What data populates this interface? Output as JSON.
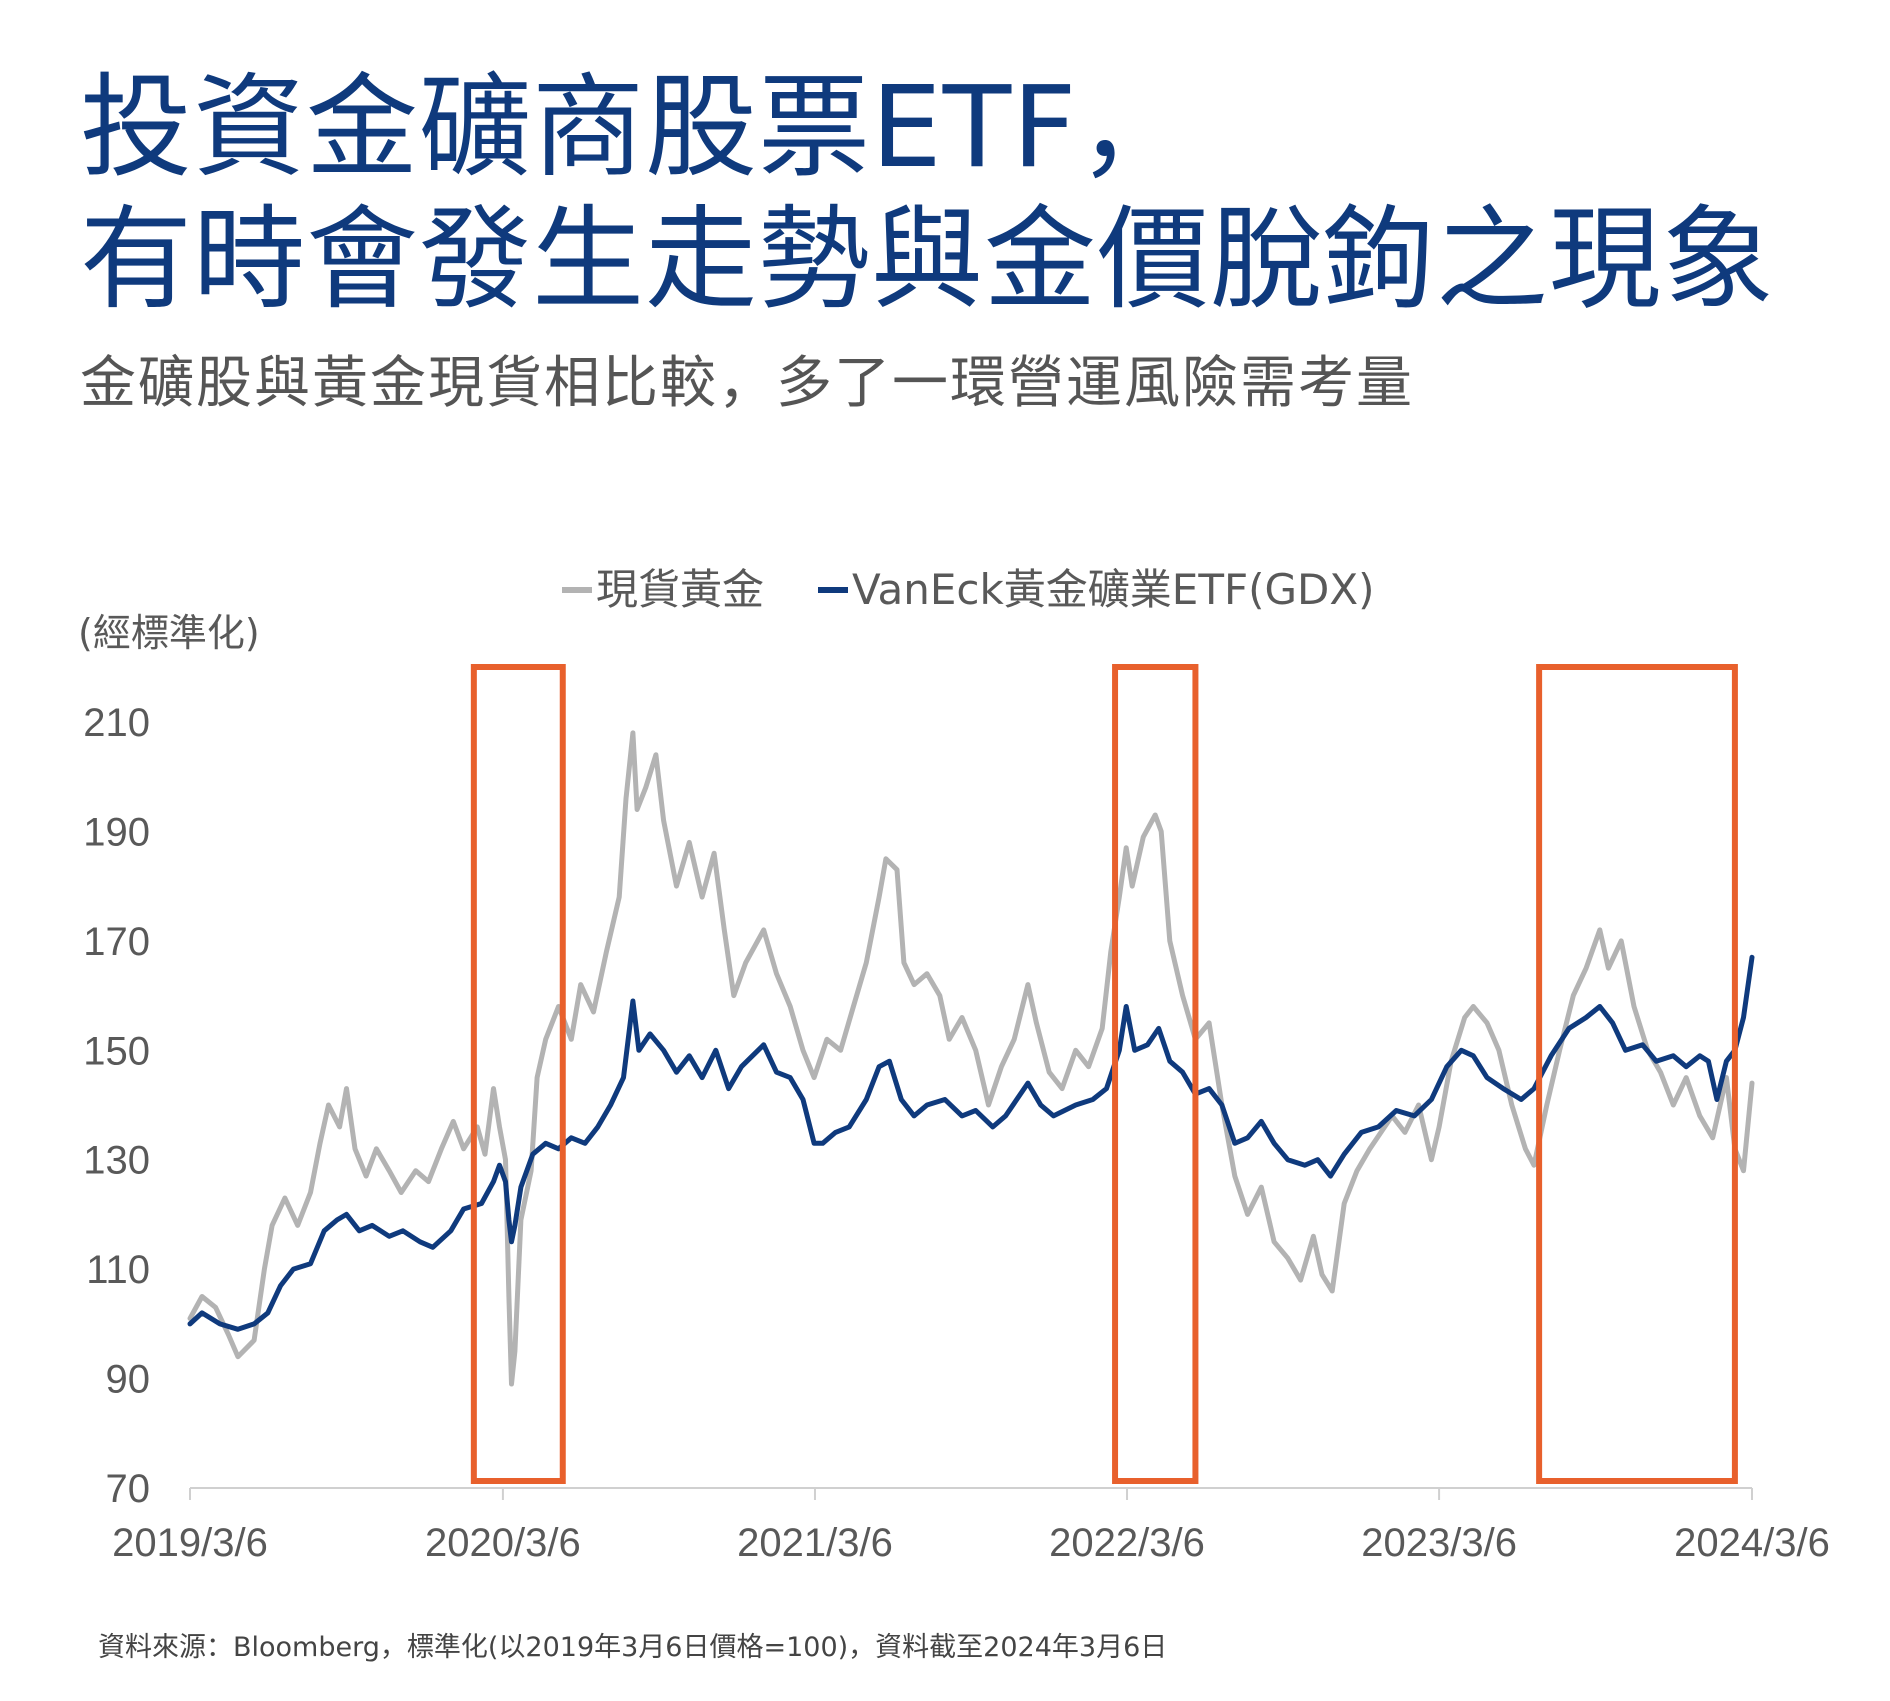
{
  "title": {
    "line1": "投資金礦商股票ETF，",
    "line2": "有時會發生走勢與金價脫鉤之現象"
  },
  "subtitle": "金礦股與黃金現貨相比較，多了一環營運風險需考量",
  "footnote": "資料來源：Bloomberg，標準化(以2019年3月6日價格=100)，資料截至2024年3月6日",
  "colors": {
    "title": "#0f3a7d",
    "gold_series": "#b3b3b3",
    "gdx_series": "#0f3a7d",
    "highlight_box": "#e8602c",
    "axis": "#d0d0d0"
  },
  "chart_data": {
    "type": "line",
    "ylabel": "(經標準化)",
    "ylim": [
      70,
      210
    ],
    "yticks": [
      "210",
      "190",
      "170",
      "150",
      "130",
      "110",
      "90",
      "70"
    ],
    "xlim": [
      "2019-03-06",
      "2024-03-06"
    ],
    "xticks": [
      "2019/3/6",
      "2020/3/6",
      "2021/3/6",
      "2022/3/6",
      "2023/3/6",
      "2024/3/6"
    ],
    "grid": false,
    "legend_position": "top-center",
    "highlight_periods": [
      {
        "start": "2020-02-01",
        "end": "2020-05-15"
      },
      {
        "start": "2022-02-20",
        "end": "2022-05-25"
      },
      {
        "start": "2023-07-01",
        "end": "2024-02-15"
      }
    ],
    "series": [
      {
        "name": "現貨黃金",
        "color": "#b3b3b3",
        "points": [
          [
            "2019-03-06",
            101
          ],
          [
            "2019-03-20",
            105
          ],
          [
            "2019-04-05",
            103
          ],
          [
            "2019-04-20",
            98
          ],
          [
            "2019-05-01",
            94
          ],
          [
            "2019-05-20",
            97
          ],
          [
            "2019-06-01",
            110
          ],
          [
            "2019-06-10",
            118
          ],
          [
            "2019-06-25",
            123
          ],
          [
            "2019-07-10",
            118
          ],
          [
            "2019-07-25",
            124
          ],
          [
            "2019-08-05",
            133
          ],
          [
            "2019-08-15",
            140
          ],
          [
            "2019-08-28",
            136
          ],
          [
            "2019-09-05",
            143
          ],
          [
            "2019-09-15",
            132
          ],
          [
            "2019-09-28",
            127
          ],
          [
            "2019-10-10",
            132
          ],
          [
            "2019-10-25",
            128
          ],
          [
            "2019-11-08",
            124
          ],
          [
            "2019-11-25",
            128
          ],
          [
            "2019-12-10",
            126
          ],
          [
            "2019-12-25",
            132
          ],
          [
            "2020-01-08",
            137
          ],
          [
            "2020-01-20",
            132
          ],
          [
            "2020-02-05",
            136
          ],
          [
            "2020-02-14",
            131
          ],
          [
            "2020-02-24",
            143
          ],
          [
            "2020-03-02",
            136
          ],
          [
            "2020-03-09",
            130
          ],
          [
            "2020-03-13",
            105
          ],
          [
            "2020-03-16",
            89
          ],
          [
            "2020-03-20",
            95
          ],
          [
            "2020-03-27",
            119
          ],
          [
            "2020-04-08",
            128
          ],
          [
            "2020-04-15",
            145
          ],
          [
            "2020-04-25",
            152
          ],
          [
            "2020-05-10",
            158
          ],
          [
            "2020-05-25",
            152
          ],
          [
            "2020-06-05",
            162
          ],
          [
            "2020-06-20",
            157
          ],
          [
            "2020-07-05",
            168
          ],
          [
            "2020-07-20",
            178
          ],
          [
            "2020-07-28",
            196
          ],
          [
            "2020-08-05",
            208
          ],
          [
            "2020-08-10",
            194
          ],
          [
            "2020-08-20",
            198
          ],
          [
            "2020-09-01",
            204
          ],
          [
            "2020-09-10",
            192
          ],
          [
            "2020-09-25",
            180
          ],
          [
            "2020-10-10",
            188
          ],
          [
            "2020-10-25",
            178
          ],
          [
            "2020-11-08",
            186
          ],
          [
            "2020-11-20",
            172
          ],
          [
            "2020-12-01",
            160
          ],
          [
            "2020-12-15",
            166
          ],
          [
            "2021-01-05",
            172
          ],
          [
            "2021-01-20",
            164
          ],
          [
            "2021-02-05",
            158
          ],
          [
            "2021-02-20",
            150
          ],
          [
            "2021-03-05",
            145
          ],
          [
            "2021-03-20",
            152
          ],
          [
            "2021-04-05",
            150
          ],
          [
            "2021-04-20",
            158
          ],
          [
            "2021-05-05",
            166
          ],
          [
            "2021-05-20",
            178
          ],
          [
            "2021-05-28",
            185
          ],
          [
            "2021-06-10",
            183
          ],
          [
            "2021-06-18",
            166
          ],
          [
            "2021-06-30",
            162
          ],
          [
            "2021-07-15",
            164
          ],
          [
            "2021-07-30",
            160
          ],
          [
            "2021-08-10",
            152
          ],
          [
            "2021-08-25",
            156
          ],
          [
            "2021-09-10",
            150
          ],
          [
            "2021-09-25",
            140
          ],
          [
            "2021-10-10",
            147
          ],
          [
            "2021-10-25",
            152
          ],
          [
            "2021-11-10",
            162
          ],
          [
            "2021-11-20",
            155
          ],
          [
            "2021-12-05",
            146
          ],
          [
            "2021-12-20",
            143
          ],
          [
            "2022-01-05",
            150
          ],
          [
            "2022-01-20",
            147
          ],
          [
            "2022-02-05",
            154
          ],
          [
            "2022-02-15",
            168
          ],
          [
            "2022-02-25",
            178
          ],
          [
            "2022-03-05",
            187
          ],
          [
            "2022-03-12",
            180
          ],
          [
            "2022-03-25",
            189
          ],
          [
            "2022-04-08",
            193
          ],
          [
            "2022-04-15",
            190
          ],
          [
            "2022-04-25",
            170
          ],
          [
            "2022-05-10",
            160
          ],
          [
            "2022-05-25",
            152
          ],
          [
            "2022-06-10",
            155
          ],
          [
            "2022-06-25",
            140
          ],
          [
            "2022-07-10",
            127
          ],
          [
            "2022-07-25",
            120
          ],
          [
            "2022-08-10",
            125
          ],
          [
            "2022-08-25",
            115
          ],
          [
            "2022-09-10",
            112
          ],
          [
            "2022-09-25",
            108
          ],
          [
            "2022-10-10",
            116
          ],
          [
            "2022-10-20",
            109
          ],
          [
            "2022-11-01",
            106
          ],
          [
            "2022-11-15",
            122
          ],
          [
            "2022-11-30",
            128
          ],
          [
            "2022-12-15",
            132
          ],
          [
            "2023-01-10",
            138
          ],
          [
            "2023-01-25",
            135
          ],
          [
            "2023-02-10",
            140
          ],
          [
            "2023-02-25",
            130
          ],
          [
            "2023-03-06",
            136
          ],
          [
            "2023-03-20",
            148
          ],
          [
            "2023-04-05",
            156
          ],
          [
            "2023-04-15",
            158
          ],
          [
            "2023-05-01",
            155
          ],
          [
            "2023-05-15",
            150
          ],
          [
            "2023-05-30",
            140
          ],
          [
            "2023-06-15",
            132
          ],
          [
            "2023-06-25",
            129
          ],
          [
            "2023-07-10",
            140
          ],
          [
            "2023-07-25",
            150
          ],
          [
            "2023-08-10",
            160
          ],
          [
            "2023-08-25",
            165
          ],
          [
            "2023-09-10",
            172
          ],
          [
            "2023-09-20",
            165
          ],
          [
            "2023-10-05",
            170
          ],
          [
            "2023-10-20",
            158
          ],
          [
            "2023-11-05",
            150
          ],
          [
            "2023-11-20",
            146
          ],
          [
            "2023-12-05",
            140
          ],
          [
            "2023-12-20",
            145
          ],
          [
            "2024-01-05",
            138
          ],
          [
            "2024-01-20",
            134
          ],
          [
            "2024-02-05",
            145
          ],
          [
            "2024-02-15",
            132
          ],
          [
            "2024-02-25",
            128
          ],
          [
            "2024-03-06",
            144
          ]
        ]
      },
      {
        "name": "VanEck黃金礦業ETF(GDX)",
        "color": "#0f3a7d",
        "points": [
          [
            "2019-03-06",
            100
          ],
          [
            "2019-03-20",
            102
          ],
          [
            "2019-04-10",
            100
          ],
          [
            "2019-05-01",
            99
          ],
          [
            "2019-05-20",
            100
          ],
          [
            "2019-06-05",
            102
          ],
          [
            "2019-06-20",
            107
          ],
          [
            "2019-07-05",
            110
          ],
          [
            "2019-07-25",
            111
          ],
          [
            "2019-08-10",
            117
          ],
          [
            "2019-08-25",
            119
          ],
          [
            "2019-09-05",
            120
          ],
          [
            "2019-09-20",
            117
          ],
          [
            "2019-10-05",
            118
          ],
          [
            "2019-10-25",
            116
          ],
          [
            "2019-11-10",
            117
          ],
          [
            "2019-11-30",
            115
          ],
          [
            "2019-12-15",
            114
          ],
          [
            "2020-01-05",
            117
          ],
          [
            "2020-01-20",
            121
          ],
          [
            "2020-02-10",
            122
          ],
          [
            "2020-02-24",
            126
          ],
          [
            "2020-03-02",
            129
          ],
          [
            "2020-03-09",
            126
          ],
          [
            "2020-03-13",
            119
          ],
          [
            "2020-03-16",
            115
          ],
          [
            "2020-03-20",
            118
          ],
          [
            "2020-03-27",
            125
          ],
          [
            "2020-04-10",
            131
          ],
          [
            "2020-04-25",
            133
          ],
          [
            "2020-05-10",
            132
          ],
          [
            "2020-05-25",
            134
          ],
          [
            "2020-06-10",
            133
          ],
          [
            "2020-06-25",
            136
          ],
          [
            "2020-07-10",
            140
          ],
          [
            "2020-07-25",
            145
          ],
          [
            "2020-08-05",
            159
          ],
          [
            "2020-08-12",
            150
          ],
          [
            "2020-08-25",
            153
          ],
          [
            "2020-09-10",
            150
          ],
          [
            "2020-09-25",
            146
          ],
          [
            "2020-10-10",
            149
          ],
          [
            "2020-10-25",
            145
          ],
          [
            "2020-11-10",
            150
          ],
          [
            "2020-11-25",
            143
          ],
          [
            "2020-12-10",
            147
          ],
          [
            "2021-01-05",
            151
          ],
          [
            "2021-01-20",
            146
          ],
          [
            "2021-02-05",
            145
          ],
          [
            "2021-02-20",
            141
          ],
          [
            "2021-03-05",
            133
          ],
          [
            "2021-03-15",
            133
          ],
          [
            "2021-03-30",
            135
          ],
          [
            "2021-04-15",
            136
          ],
          [
            "2021-05-05",
            141
          ],
          [
            "2021-05-20",
            147
          ],
          [
            "2021-06-01",
            148
          ],
          [
            "2021-06-15",
            141
          ],
          [
            "2021-06-30",
            138
          ],
          [
            "2021-07-15",
            140
          ],
          [
            "2021-08-05",
            141
          ],
          [
            "2021-08-25",
            138
          ],
          [
            "2021-09-10",
            139
          ],
          [
            "2021-09-30",
            136
          ],
          [
            "2021-10-15",
            138
          ],
          [
            "2021-11-10",
            144
          ],
          [
            "2021-11-25",
            140
          ],
          [
            "2021-12-10",
            138
          ],
          [
            "2022-01-05",
            140
          ],
          [
            "2022-01-25",
            141
          ],
          [
            "2022-02-10",
            143
          ],
          [
            "2022-02-25",
            150
          ],
          [
            "2022-03-05",
            158
          ],
          [
            "2022-03-15",
            150
          ],
          [
            "2022-03-30",
            151
          ],
          [
            "2022-04-12",
            154
          ],
          [
            "2022-04-25",
            148
          ],
          [
            "2022-05-10",
            146
          ],
          [
            "2022-05-25",
            142
          ],
          [
            "2022-06-10",
            143
          ],
          [
            "2022-06-25",
            140
          ],
          [
            "2022-07-10",
            133
          ],
          [
            "2022-07-25",
            134
          ],
          [
            "2022-08-10",
            137
          ],
          [
            "2022-08-25",
            133
          ],
          [
            "2022-09-10",
            130
          ],
          [
            "2022-09-30",
            129
          ],
          [
            "2022-10-15",
            130
          ],
          [
            "2022-10-30",
            127
          ],
          [
            "2022-11-15",
            131
          ],
          [
            "2022-12-05",
            135
          ],
          [
            "2022-12-25",
            136
          ],
          [
            "2023-01-15",
            139
          ],
          [
            "2023-02-05",
            138
          ],
          [
            "2023-02-25",
            141
          ],
          [
            "2023-03-15",
            147
          ],
          [
            "2023-04-01",
            150
          ],
          [
            "2023-04-15",
            149
          ],
          [
            "2023-05-01",
            145
          ],
          [
            "2023-05-20",
            143
          ],
          [
            "2023-06-10",
            141
          ],
          [
            "2023-06-25",
            143
          ],
          [
            "2023-07-15",
            149
          ],
          [
            "2023-08-05",
            154
          ],
          [
            "2023-08-25",
            156
          ],
          [
            "2023-09-10",
            158
          ],
          [
            "2023-09-25",
            155
          ],
          [
            "2023-10-10",
            150
          ],
          [
            "2023-10-30",
            151
          ],
          [
            "2023-11-15",
            148
          ],
          [
            "2023-12-05",
            149
          ],
          [
            "2023-12-20",
            147
          ],
          [
            "2024-01-05",
            149
          ],
          [
            "2024-01-15",
            148
          ],
          [
            "2024-01-25",
            141
          ],
          [
            "2024-02-05",
            148
          ],
          [
            "2024-02-15",
            150
          ],
          [
            "2024-02-25",
            156
          ],
          [
            "2024-03-06",
            167
          ]
        ]
      }
    ]
  }
}
